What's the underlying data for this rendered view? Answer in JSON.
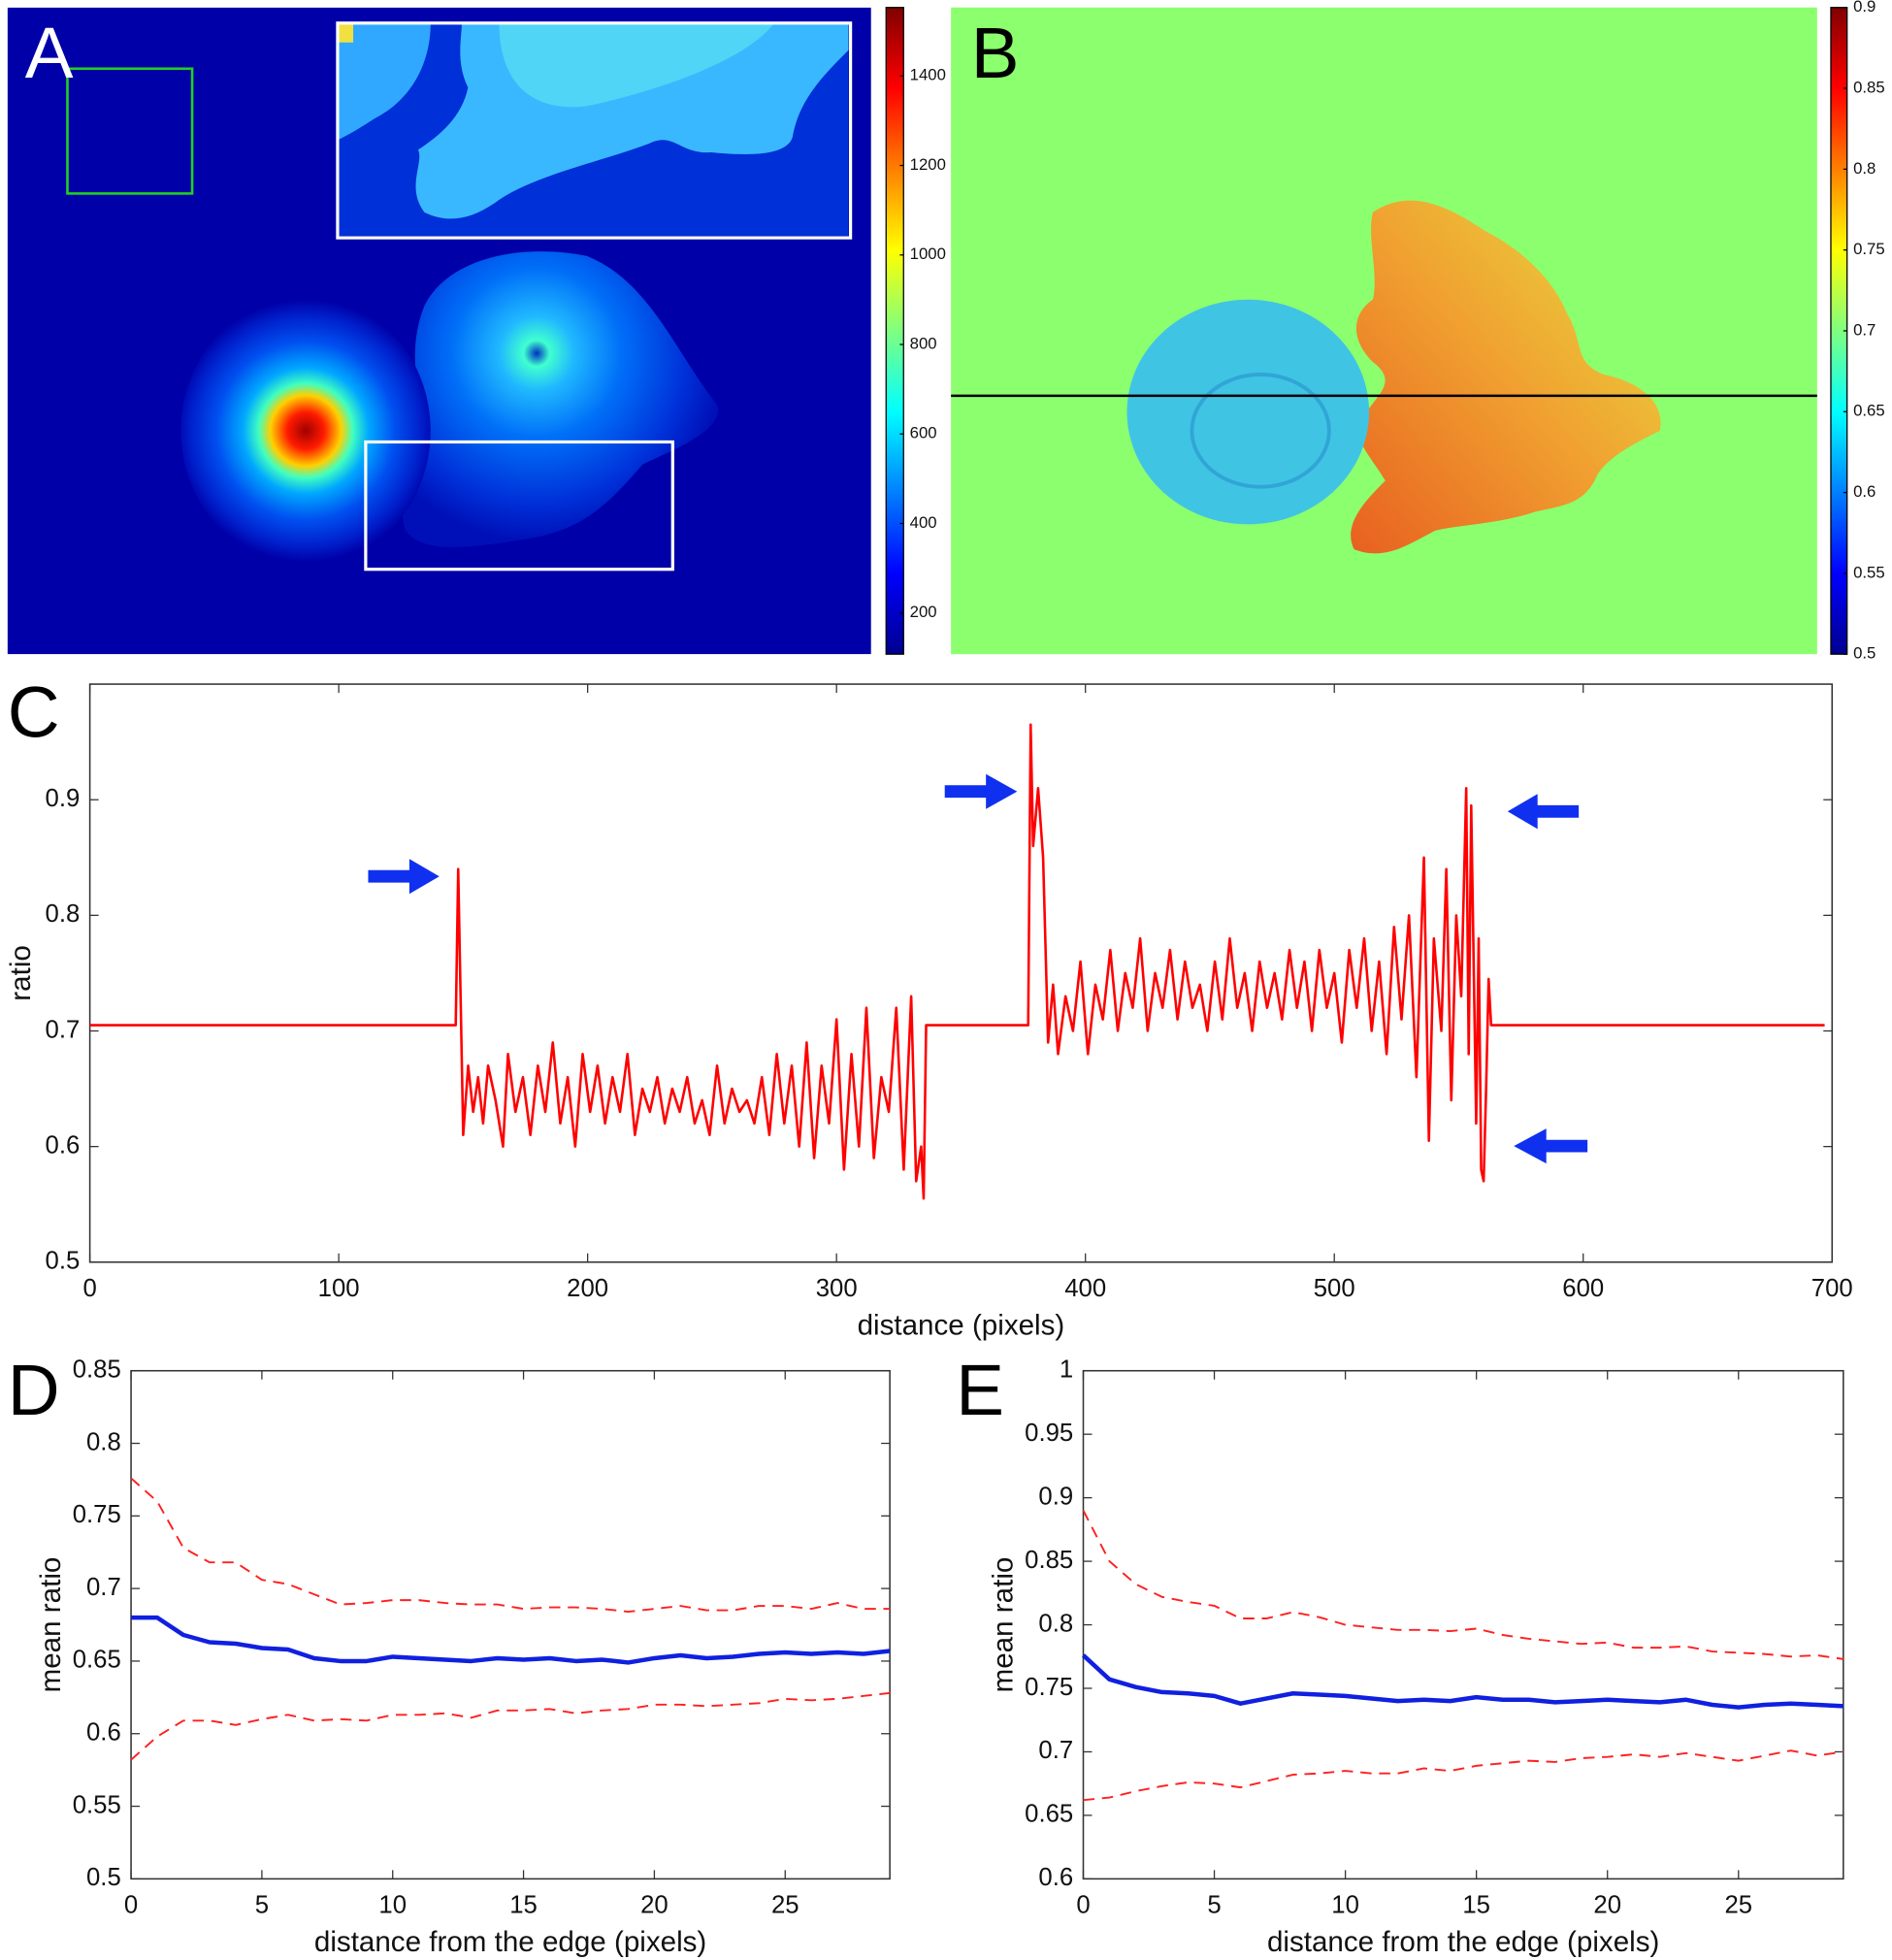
{
  "chart_data": [
    {
      "type": "image",
      "panel": "A",
      "colormap": "jet",
      "ylim": [
        108,
        1553
      ],
      "yticks": [
        200,
        400,
        600,
        800,
        1000,
        1200,
        1400
      ]
    },
    {
      "type": "image",
      "panel": "B",
      "colormap": "jet",
      "ylim": [
        0.5,
        0.9
      ],
      "yticks": [
        0.5,
        0.55,
        0.6,
        0.65,
        0.7,
        0.75,
        0.8,
        0.85,
        0.9
      ]
    },
    {
      "type": "line",
      "panel": "C",
      "ylabel": "ratio",
      "xlabel": "distance (pixels)",
      "color": "#ff0000",
      "xlim": [
        0,
        700
      ],
      "xticks": [
        0,
        100,
        200,
        300,
        400,
        500,
        600,
        700
      ],
      "ylim": [
        0.5,
        1.0
      ],
      "yticks": [
        0.5,
        0.6,
        0.7,
        0.8,
        0.9
      ],
      "x": [
        0,
        147,
        148,
        150,
        152,
        154,
        156,
        158,
        160,
        163,
        166,
        168,
        171,
        174,
        177,
        180,
        183,
        186,
        189,
        192,
        195,
        198,
        201,
        204,
        207,
        210,
        213,
        216,
        219,
        222,
        225,
        228,
        231,
        234,
        237,
        240,
        243,
        246,
        249,
        252,
        255,
        258,
        261,
        264,
        267,
        270,
        273,
        276,
        279,
        282,
        285,
        288,
        291,
        294,
        297,
        300,
        303,
        306,
        309,
        312,
        315,
        318,
        321,
        324,
        327,
        330,
        332,
        334,
        335,
        336,
        377,
        378,
        379,
        381,
        383,
        385,
        387,
        389,
        392,
        395,
        398,
        401,
        404,
        407,
        410,
        413,
        416,
        419,
        422,
        425,
        428,
        431,
        434,
        437,
        440,
        443,
        446,
        449,
        452,
        455,
        458,
        461,
        464,
        467,
        470,
        473,
        476,
        479,
        482,
        485,
        488,
        491,
        494,
        497,
        500,
        503,
        506,
        509,
        512,
        515,
        518,
        521,
        524,
        527,
        530,
        533,
        536,
        538,
        540,
        543,
        545,
        547,
        549,
        551,
        553,
        554,
        555,
        557,
        558,
        559,
        560,
        561,
        562,
        563,
        697
      ],
      "values": [
        0.705,
        0.705,
        0.84,
        0.61,
        0.67,
        0.63,
        0.66,
        0.62,
        0.67,
        0.64,
        0.6,
        0.68,
        0.63,
        0.66,
        0.61,
        0.67,
        0.63,
        0.69,
        0.62,
        0.66,
        0.6,
        0.68,
        0.63,
        0.67,
        0.62,
        0.66,
        0.63,
        0.68,
        0.61,
        0.65,
        0.63,
        0.66,
        0.62,
        0.65,
        0.63,
        0.66,
        0.62,
        0.64,
        0.61,
        0.67,
        0.62,
        0.65,
        0.63,
        0.64,
        0.62,
        0.66,
        0.61,
        0.68,
        0.62,
        0.67,
        0.6,
        0.69,
        0.59,
        0.67,
        0.62,
        0.71,
        0.58,
        0.68,
        0.6,
        0.72,
        0.59,
        0.66,
        0.63,
        0.72,
        0.58,
        0.73,
        0.57,
        0.6,
        0.555,
        0.705,
        0.705,
        0.965,
        0.86,
        0.91,
        0.85,
        0.69,
        0.74,
        0.68,
        0.73,
        0.7,
        0.76,
        0.68,
        0.74,
        0.71,
        0.77,
        0.7,
        0.75,
        0.72,
        0.78,
        0.7,
        0.75,
        0.72,
        0.77,
        0.71,
        0.76,
        0.72,
        0.74,
        0.7,
        0.76,
        0.71,
        0.78,
        0.72,
        0.75,
        0.7,
        0.76,
        0.72,
        0.75,
        0.71,
        0.77,
        0.72,
        0.76,
        0.7,
        0.77,
        0.72,
        0.75,
        0.69,
        0.77,
        0.72,
        0.78,
        0.7,
        0.76,
        0.68,
        0.79,
        0.71,
        0.8,
        0.66,
        0.85,
        0.605,
        0.78,
        0.7,
        0.84,
        0.64,
        0.8,
        0.73,
        0.91,
        0.68,
        0.895,
        0.62,
        0.78,
        0.58,
        0.57,
        0.65,
        0.745,
        0.705,
        0.705
      ]
    },
    {
      "type": "line",
      "panel": "D",
      "ylabel": "mean ratio",
      "xlabel": "distance from the edge (pixels)",
      "xlim": [
        0,
        29
      ],
      "xticks": [
        0,
        5,
        10,
        15,
        20,
        25
      ],
      "ylim": [
        0.5,
        0.85
      ],
      "yticks": [
        0.5,
        0.55,
        0.6,
        0.65,
        0.7,
        0.75,
        0.8,
        0.85
      ],
      "x": [
        0,
        1,
        2,
        3,
        4,
        5,
        6,
        7,
        8,
        9,
        10,
        11,
        12,
        13,
        14,
        15,
        16,
        17,
        18,
        19,
        20,
        21,
        22,
        23,
        24,
        25,
        26,
        27,
        28,
        29
      ],
      "series": [
        {
          "color": "#1020e0",
          "dashed": false,
          "values": [
            0.68,
            0.68,
            0.668,
            0.663,
            0.662,
            0.659,
            0.658,
            0.652,
            0.65,
            0.65,
            0.653,
            0.652,
            0.651,
            0.65,
            0.652,
            0.651,
            0.652,
            0.65,
            0.651,
            0.649,
            0.652,
            0.654,
            0.652,
            0.653,
            0.655,
            0.656,
            0.655,
            0.656,
            0.655,
            0.657
          ]
        },
        {
          "color": "#ff2020",
          "dashed": true,
          "values": [
            0.776,
            0.76,
            0.728,
            0.718,
            0.718,
            0.706,
            0.703,
            0.696,
            0.689,
            0.69,
            0.692,
            0.692,
            0.69,
            0.689,
            0.689,
            0.686,
            0.687,
            0.687,
            0.686,
            0.684,
            0.686,
            0.688,
            0.685,
            0.685,
            0.688,
            0.688,
            0.686,
            0.69,
            0.686,
            0.686
          ]
        },
        {
          "color": "#ff2020",
          "dashed": true,
          "values": [
            0.582,
            0.598,
            0.609,
            0.609,
            0.606,
            0.61,
            0.613,
            0.609,
            0.61,
            0.609,
            0.613,
            0.613,
            0.614,
            0.611,
            0.616,
            0.616,
            0.617,
            0.614,
            0.616,
            0.617,
            0.62,
            0.62,
            0.619,
            0.62,
            0.621,
            0.624,
            0.623,
            0.624,
            0.626,
            0.628
          ]
        }
      ]
    },
    {
      "type": "line",
      "panel": "E",
      "ylabel": "mean ratio",
      "xlabel": "distance from the edge (pixels)",
      "xlim": [
        0,
        29
      ],
      "xticks": [
        0,
        5,
        10,
        15,
        20,
        25
      ],
      "ylim": [
        0.6,
        1
      ],
      "yticks": [
        0.6,
        0.65,
        0.7,
        0.75,
        0.8,
        0.85,
        0.9,
        0.95,
        1
      ],
      "x": [
        0,
        1,
        2,
        3,
        4,
        5,
        6,
        7,
        8,
        9,
        10,
        11,
        12,
        13,
        14,
        15,
        16,
        17,
        18,
        19,
        20,
        21,
        22,
        23,
        24,
        25,
        26,
        27,
        28,
        29
      ],
      "series": [
        {
          "color": "#1020e0",
          "dashed": false,
          "values": [
            0.776,
            0.757,
            0.751,
            0.747,
            0.746,
            0.744,
            0.738,
            0.742,
            0.746,
            0.745,
            0.744,
            0.742,
            0.74,
            0.741,
            0.74,
            0.743,
            0.741,
            0.741,
            0.739,
            0.74,
            0.741,
            0.74,
            0.739,
            0.741,
            0.737,
            0.735,
            0.737,
            0.738,
            0.737,
            0.736
          ]
        },
        {
          "color": "#ff2020",
          "dashed": true,
          "values": [
            0.89,
            0.85,
            0.832,
            0.822,
            0.818,
            0.815,
            0.805,
            0.805,
            0.81,
            0.806,
            0.8,
            0.798,
            0.796,
            0.796,
            0.795,
            0.797,
            0.792,
            0.789,
            0.787,
            0.785,
            0.786,
            0.782,
            0.782,
            0.783,
            0.779,
            0.778,
            0.777,
            0.775,
            0.776,
            0.773
          ]
        },
        {
          "color": "#ff2020",
          "dashed": true,
          "values": [
            0.662,
            0.664,
            0.669,
            0.673,
            0.676,
            0.675,
            0.672,
            0.677,
            0.682,
            0.683,
            0.685,
            0.683,
            0.683,
            0.687,
            0.685,
            0.689,
            0.691,
            0.693,
            0.692,
            0.695,
            0.696,
            0.698,
            0.696,
            0.699,
            0.696,
            0.693,
            0.697,
            0.701,
            0.697,
            0.7
          ]
        }
      ]
    }
  ]
}
